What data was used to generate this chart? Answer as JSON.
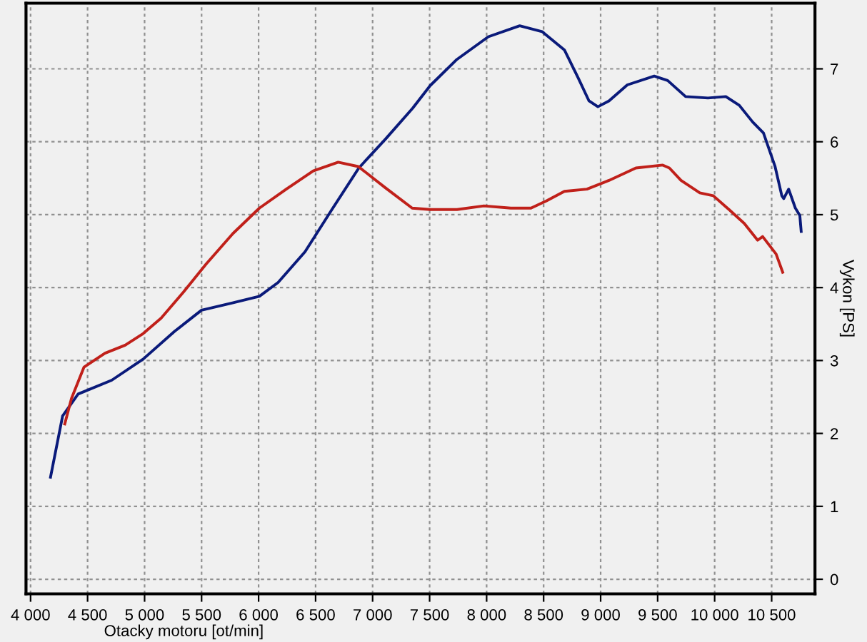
{
  "chart_data": {
    "type": "line",
    "xlabel": "Otacky motoru [ot/min]",
    "ylabel": "Vykon [PS]",
    "xlim": [
      3960,
      10880
    ],
    "ylim": [
      -0.2,
      7.9
    ],
    "xticks": [
      {
        "value": 4000,
        "label": "4 000"
      },
      {
        "value": 4500,
        "label": "4 500"
      },
      {
        "value": 5000,
        "label": "5 000"
      },
      {
        "value": 5500,
        "label": "5 500"
      },
      {
        "value": 6000,
        "label": "6 000"
      },
      {
        "value": 6500,
        "label": "6 500"
      },
      {
        "value": 7000,
        "label": "7 000"
      },
      {
        "value": 7500,
        "label": "7 500"
      },
      {
        "value": 8000,
        "label": "8 000"
      },
      {
        "value": 8500,
        "label": "8 500"
      },
      {
        "value": 9000,
        "label": "9 000"
      },
      {
        "value": 9500,
        "label": "9 500"
      },
      {
        "value": 10000,
        "label": "10 000"
      },
      {
        "value": 10500,
        "label": "10 500"
      }
    ],
    "yticks": [
      0,
      1,
      2,
      3,
      4,
      5,
      6,
      7
    ],
    "grid": true,
    "legend": false,
    "marker": "none",
    "line_style": "solid",
    "series": [
      {
        "color": "#0a1a7a",
        "x": [
          4175,
          4281,
          4417,
          4712,
          4988,
          5263,
          5499,
          5771,
          6007,
          6171,
          6407,
          6643,
          6879,
          7115,
          7351,
          7505,
          7740,
          8015,
          8290,
          8487,
          8682,
          8802,
          8898,
          8976,
          9073,
          9234,
          9470,
          9588,
          9745,
          9941,
          10098,
          10216,
          10334,
          10428,
          10530,
          10589,
          10606,
          10649,
          10708,
          10747,
          10759
        ],
        "values": [
          1.4,
          2.24,
          2.54,
          2.73,
          3.02,
          3.4,
          3.69,
          3.79,
          3.88,
          4.07,
          4.49,
          5.07,
          5.64,
          6.04,
          6.46,
          6.77,
          7.13,
          7.44,
          7.59,
          7.51,
          7.26,
          6.88,
          6.56,
          6.48,
          6.56,
          6.78,
          6.9,
          6.84,
          6.62,
          6.6,
          6.62,
          6.5,
          6.27,
          6.12,
          5.66,
          5.26,
          5.22,
          5.35,
          5.09,
          4.99,
          4.77
        ]
      },
      {
        "color": "#c0201a",
        "x": [
          4300,
          4359,
          4469,
          4653,
          4830,
          4988,
          5145,
          5342,
          5538,
          5774,
          6007,
          6243,
          6479,
          6698,
          6875,
          7111,
          7347,
          7505,
          7740,
          7976,
          8212,
          8389,
          8526,
          8682,
          8880,
          9073,
          9309,
          9545,
          9603,
          9705,
          9870,
          9988,
          10126,
          10260,
          10377,
          10421,
          10539,
          10597
        ],
        "values": [
          2.13,
          2.48,
          2.91,
          3.1,
          3.21,
          3.37,
          3.58,
          3.94,
          4.32,
          4.74,
          5.09,
          5.35,
          5.6,
          5.72,
          5.66,
          5.37,
          5.09,
          5.07,
          5.07,
          5.12,
          5.09,
          5.09,
          5.19,
          5.32,
          5.35,
          5.47,
          5.64,
          5.68,
          5.64,
          5.47,
          5.3,
          5.26,
          5.07,
          4.88,
          4.65,
          4.7,
          4.46,
          4.21
        ]
      }
    ]
  }
}
